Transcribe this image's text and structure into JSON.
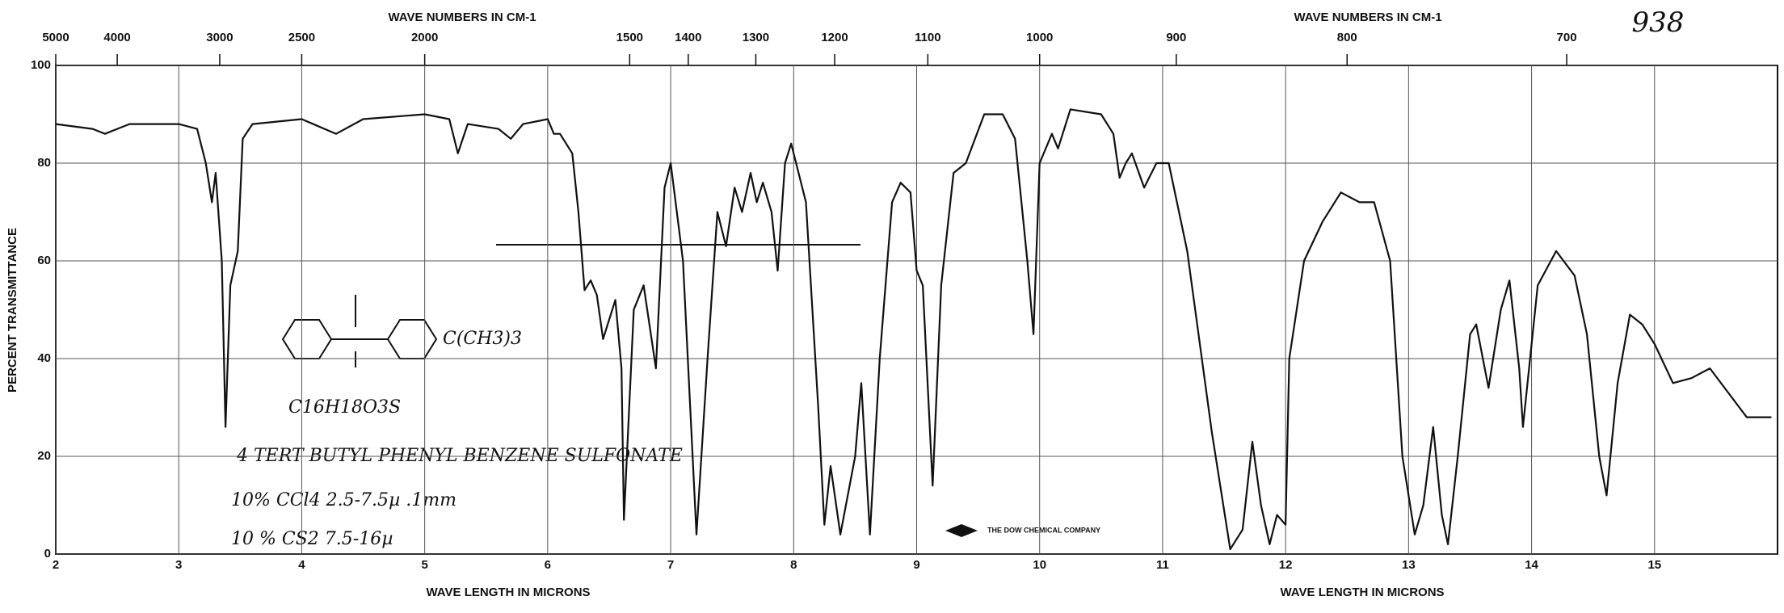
{
  "chart_data": {
    "type": "line",
    "title_top_left": "WAVE NUMBERS IN CM-1",
    "title_top_right": "WAVE NUMBERS IN CM-1",
    "xlabel_left": "WAVE LENGTH IN MICRONS",
    "xlabel_right": "WAVE LENGTH IN MICRONS",
    "ylabel": "PERCENT TRANSMITTANCE",
    "annotations": {
      "number": "938",
      "substituent": "C(CH3)3",
      "formula": "C16H18O3S",
      "name": "4 TERT BUTYL PHENYL BENZENE SULFONATE",
      "conditions_1": "10% CCl4  2.5-7.5µ   .1mm",
      "conditions_2": "10 % CS2  7.5-16µ",
      "company": "THE DOW CHEMICAL COMPANY"
    },
    "xlim": [
      2,
      16
    ],
    "xticks": [
      2,
      3,
      4,
      5,
      6,
      7,
      8,
      9,
      10,
      11,
      12,
      13,
      14,
      15
    ],
    "x2ticks": [
      5000,
      4000,
      3000,
      2500,
      2000,
      1500,
      1400,
      1300,
      1200,
      1100,
      1000,
      900,
      800,
      700
    ],
    "ylim": [
      0,
      100
    ],
    "yticks": [
      0,
      20,
      40,
      60,
      80,
      100
    ],
    "grid": true,
    "series": [
      {
        "name": "spectrum",
        "color": "#111111",
        "x": [
          2.0,
          2.3,
          2.4,
          2.5,
          2.6,
          3.0,
          3.15,
          3.22,
          3.27,
          3.3,
          3.35,
          3.38,
          3.42,
          3.48,
          3.52,
          3.6,
          4.0,
          4.28,
          4.5,
          5.0,
          5.2,
          5.27,
          5.35,
          5.6,
          5.7,
          5.8,
          6.0,
          6.05,
          6.1,
          6.2,
          6.25,
          6.3,
          6.35,
          6.4,
          6.45,
          6.55,
          6.6,
          6.62,
          6.7,
          6.78,
          6.88,
          6.95,
          7.0,
          7.1,
          7.21,
          7.3,
          7.38,
          7.45,
          7.52,
          7.58,
          7.65,
          7.7,
          7.75,
          7.82,
          7.87,
          7.93,
          7.98,
          8.1,
          8.2,
          8.25,
          8.3,
          8.38,
          8.5,
          8.55,
          8.62,
          8.7,
          8.8,
          8.87,
          8.95,
          9.0,
          9.05,
          9.13,
          9.2,
          9.3,
          9.4,
          9.55,
          9.7,
          9.8,
          9.9,
          9.95,
          10.0,
          10.1,
          10.15,
          10.25,
          10.5,
          10.6,
          10.65,
          10.7,
          10.75,
          10.85,
          10.95,
          11.05,
          11.2,
          11.4,
          11.55,
          11.65,
          11.73,
          11.8,
          11.87,
          11.93,
          12.0,
          12.03,
          12.15,
          12.3,
          12.45,
          12.6,
          12.72,
          12.85,
          12.95,
          13.05,
          13.12,
          13.2,
          13.27,
          13.32,
          13.4,
          13.5,
          13.55,
          13.65,
          13.75,
          13.82,
          13.9,
          13.93,
          14.05,
          14.2,
          14.35,
          14.45,
          14.55,
          14.61,
          14.7,
          14.8,
          14.9,
          15.0,
          15.15,
          15.3,
          15.45,
          15.6,
          15.75,
          15.95
        ],
        "values": [
          88,
          87,
          86,
          87,
          88,
          88,
          87,
          80,
          72,
          78,
          60,
          26,
          55,
          62,
          85,
          88,
          89,
          86,
          89,
          90,
          89,
          82,
          88,
          87,
          85,
          88,
          89,
          86,
          86,
          82,
          70,
          54,
          56,
          53,
          44,
          52,
          38,
          7,
          50,
          55,
          38,
          75,
          80,
          60,
          4,
          40,
          70,
          63,
          75,
          70,
          78,
          72,
          76,
          70,
          58,
          80,
          84,
          72,
          30,
          6,
          18,
          4,
          20,
          35,
          4,
          40,
          72,
          76,
          74,
          58,
          55,
          14,
          55,
          78,
          80,
          90,
          90,
          85,
          60,
          45,
          80,
          86,
          83,
          91,
          90,
          86,
          77,
          80,
          82,
          75,
          80,
          80,
          62,
          25,
          1,
          5,
          23,
          10,
          2,
          8,
          6,
          40,
          60,
          68,
          74,
          72,
          72,
          60,
          20,
          4,
          10,
          26,
          8,
          2,
          20,
          45,
          47,
          34,
          50,
          56,
          38,
          26,
          55,
          62,
          57,
          45,
          20,
          12,
          35,
          49,
          47,
          43,
          35,
          36,
          38,
          33,
          28,
          28
        ]
      }
    ]
  }
}
